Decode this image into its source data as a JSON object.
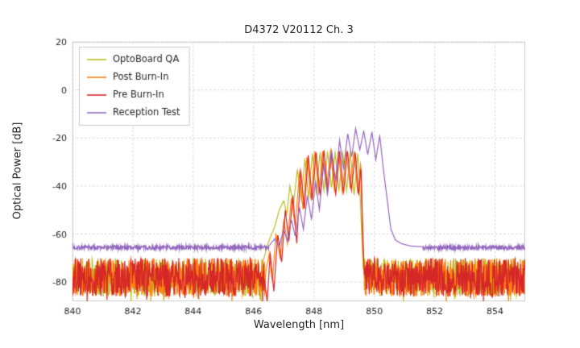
{
  "chart_data": {
    "type": "line",
    "title": "D4372 V20112 Ch. 3",
    "xlabel": "Wavelength [nm]",
    "ylabel": "Optical Power [dB]",
    "xlim": [
      840,
      855
    ],
    "ylim": [
      -88,
      20
    ],
    "xticks": [
      840,
      842,
      844,
      846,
      848,
      850,
      852,
      854
    ],
    "yticks": [
      20,
      0,
      -20,
      -40,
      -60,
      -80
    ],
    "grid": true,
    "grid_color": "#cccccc",
    "background": "#ffffff",
    "legend_position": "upper left",
    "series": [
      {
        "name": "OptoBoard QA",
        "color": "#bcbd22",
        "line_width": 1.2,
        "noise": {
          "seed": 11,
          "base": -78,
          "range": 16
        },
        "peak_points": [
          [
            846.3,
            -72
          ],
          [
            846.5,
            -63
          ],
          [
            846.7,
            -57
          ],
          [
            846.85,
            -50
          ],
          [
            847.0,
            -46
          ],
          [
            847.1,
            -52
          ],
          [
            847.2,
            -40
          ],
          [
            847.32,
            -48
          ],
          [
            847.45,
            -33
          ],
          [
            847.58,
            -46
          ],
          [
            847.7,
            -28.5
          ],
          [
            847.82,
            -45
          ],
          [
            847.95,
            -26.5
          ],
          [
            848.08,
            -43
          ],
          [
            848.2,
            -26
          ],
          [
            848.33,
            -42
          ],
          [
            848.45,
            -25.5
          ],
          [
            848.58,
            -41
          ],
          [
            848.7,
            -26
          ],
          [
            848.83,
            -42
          ],
          [
            848.95,
            -25.5
          ],
          [
            849.08,
            -42
          ],
          [
            849.2,
            -26
          ],
          [
            849.33,
            -44
          ],
          [
            849.45,
            -26.5
          ],
          [
            849.52,
            -40
          ],
          [
            849.58,
            -60
          ],
          [
            849.64,
            -76
          ]
        ]
      },
      {
        "name": "Post Burn-In",
        "color": "#ff7f0e",
        "line_width": 1.2,
        "noise": {
          "seed": 23,
          "base": -78,
          "range": 16
        },
        "peak_points": [
          [
            846.4,
            -76
          ],
          [
            846.52,
            -68
          ],
          [
            846.62,
            -80
          ],
          [
            846.74,
            -60
          ],
          [
            846.88,
            -70
          ],
          [
            847.0,
            -54
          ],
          [
            847.12,
            -64
          ],
          [
            847.25,
            -45
          ],
          [
            847.38,
            -57
          ],
          [
            847.52,
            -34
          ],
          [
            847.64,
            -50
          ],
          [
            847.77,
            -27.5
          ],
          [
            847.9,
            -46
          ],
          [
            848.03,
            -25.5
          ],
          [
            848.16,
            -43
          ],
          [
            848.29,
            -25
          ],
          [
            848.42,
            -41
          ],
          [
            848.55,
            -25.5
          ],
          [
            848.68,
            -42
          ],
          [
            848.81,
            -25
          ],
          [
            848.94,
            -43
          ],
          [
            849.07,
            -25.5
          ],
          [
            849.2,
            -41
          ],
          [
            849.33,
            -25
          ],
          [
            849.45,
            -43
          ],
          [
            849.55,
            -30
          ],
          [
            849.6,
            -58
          ],
          [
            849.66,
            -78
          ]
        ]
      },
      {
        "name": "Pre Burn-In",
        "color": "#d62728",
        "line_width": 1.2,
        "noise": {
          "seed": 37,
          "base": -78,
          "range": 16
        },
        "peak_points": [
          [
            846.35,
            -78
          ],
          [
            846.45,
            -88
          ],
          [
            846.55,
            -68
          ],
          [
            846.67,
            -84
          ],
          [
            846.8,
            -60
          ],
          [
            846.93,
            -72
          ],
          [
            847.05,
            -50
          ],
          [
            847.17,
            -63
          ],
          [
            847.3,
            -44
          ],
          [
            847.43,
            -64
          ],
          [
            847.56,
            -33
          ],
          [
            847.68,
            -50
          ],
          [
            847.81,
            -27
          ],
          [
            847.94,
            -46
          ],
          [
            848.07,
            -25.5
          ],
          [
            848.2,
            -44
          ],
          [
            848.33,
            -25
          ],
          [
            848.46,
            -42
          ],
          [
            848.59,
            -26
          ],
          [
            848.72,
            -44
          ],
          [
            848.85,
            -25.5
          ],
          [
            848.98,
            -43
          ],
          [
            849.11,
            -25
          ],
          [
            849.24,
            -42
          ],
          [
            849.37,
            -26
          ],
          [
            849.48,
            -44
          ],
          [
            849.56,
            -32
          ],
          [
            849.62,
            -60
          ],
          [
            849.68,
            -80
          ]
        ]
      },
      {
        "name": "Reception Test",
        "color": "#9467bd",
        "line_width": 1.2,
        "noise": {
          "seed": 7,
          "base": -65.6,
          "range": 1.8
        },
        "peak_points": [
          [
            846.5,
            -65
          ],
          [
            846.7,
            -62
          ],
          [
            846.85,
            -65
          ],
          [
            847.0,
            -58
          ],
          [
            847.12,
            -63
          ],
          [
            847.25,
            -54
          ],
          [
            847.38,
            -61
          ],
          [
            847.52,
            -49
          ],
          [
            847.65,
            -58
          ],
          [
            847.78,
            -44
          ],
          [
            847.92,
            -54
          ],
          [
            848.05,
            -38
          ],
          [
            848.18,
            -50
          ],
          [
            848.32,
            -31
          ],
          [
            848.45,
            -44
          ],
          [
            848.58,
            -25
          ],
          [
            848.72,
            -38
          ],
          [
            848.85,
            -21
          ],
          [
            848.98,
            -33
          ],
          [
            849.12,
            -18
          ],
          [
            849.25,
            -28
          ],
          [
            849.38,
            -16
          ],
          [
            849.52,
            -25
          ],
          [
            849.65,
            -17
          ],
          [
            849.78,
            -27
          ],
          [
            849.92,
            -17.5
          ],
          [
            850.05,
            -29
          ],
          [
            850.18,
            -19
          ],
          [
            850.3,
            -33
          ],
          [
            850.42,
            -45
          ],
          [
            850.55,
            -58
          ],
          [
            850.7,
            -62.5
          ],
          [
            850.9,
            -64
          ],
          [
            851.2,
            -65
          ],
          [
            851.6,
            -65.3
          ]
        ]
      }
    ]
  }
}
